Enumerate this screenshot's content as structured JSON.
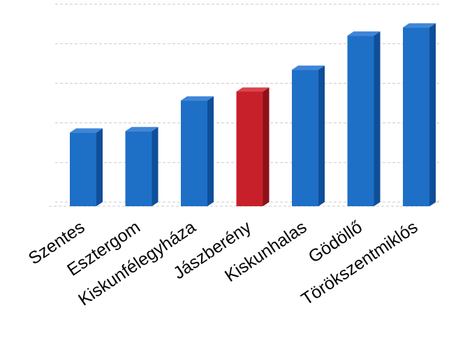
{
  "chart_data": {
    "type": "bar",
    "style": "3d-column",
    "categories": [
      "Szentes",
      "Esztergom",
      "Kiskunfélegyháza",
      "Jászberény",
      "Kiskunhalas",
      "Gödöllő",
      "Törökszentmiklós"
    ],
    "values": [
      108,
      110,
      155,
      168,
      200,
      250,
      262
    ],
    "highlight_index": 3,
    "colors": {
      "bar": "#1e6fc6",
      "bar_side": "#0f4f99",
      "bar_top": "#3f86d8",
      "highlight": "#c8202a",
      "highlight_side": "#8e1119",
      "highlight_top": "#d9454c",
      "gridline": "#c9c9c9"
    },
    "grid": true,
    "legend": "none",
    "ylim": [
      0,
      290
    ],
    "ticks": [
      0,
      58,
      116,
      174,
      232,
      290
    ]
  }
}
